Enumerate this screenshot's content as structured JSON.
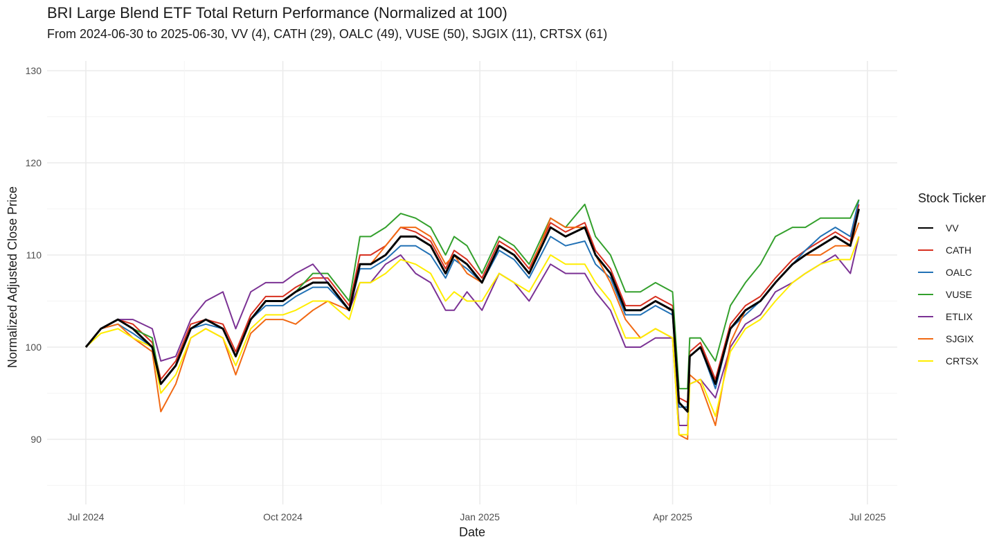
{
  "title": "BRI Large Blend ETF Total Return Performance (Normalized at 100)",
  "subtitle": "From 2024-06-30 to 2025-06-30, VV (4), CATH (29), OALC (49), VUSE (50), SJGIX (11), CRTSX (61)",
  "chart_data": {
    "type": "line",
    "title": "BRI Large Blend ETF Total Return Performance (Normalized at 100)",
    "subtitle": "From 2024-06-30 to 2025-06-30, VV (4), CATH (29), OALC (49), VUSE (50), SJGIX (11), CRTSX (61)",
    "xlabel": "Date",
    "ylabel": "Normalized Adjusted Close Price",
    "xlim": [
      "2024-07-01",
      "2025-07-01"
    ],
    "ylim": [
      85,
      130
    ],
    "x_ticks": [
      {
        "date": "2024-07-01",
        "label": "Jul 2024"
      },
      {
        "date": "2024-10-01",
        "label": "Oct 2024"
      },
      {
        "date": "2025-01-01",
        "label": "Jan 2025"
      },
      {
        "date": "2025-04-01",
        "label": "Apr 2025"
      },
      {
        "date": "2025-07-01",
        "label": "Jul 2025"
      }
    ],
    "y_ticks": [
      90,
      100,
      110,
      120,
      130
    ],
    "grid": true,
    "legend_title": "Stock Ticker",
    "legend_position": "right",
    "x": [
      "2024-07-01",
      "2024-07-08",
      "2024-07-16",
      "2024-07-23",
      "2024-08-01",
      "2024-08-05",
      "2024-08-12",
      "2024-08-19",
      "2024-08-26",
      "2024-09-03",
      "2024-09-09",
      "2024-09-16",
      "2024-09-23",
      "2024-10-01",
      "2024-10-07",
      "2024-10-15",
      "2024-10-22",
      "2024-11-01",
      "2024-11-06",
      "2024-11-11",
      "2024-11-18",
      "2024-11-25",
      "2024-12-02",
      "2024-12-09",
      "2024-12-16",
      "2024-12-20",
      "2024-12-26",
      "2025-01-02",
      "2025-01-10",
      "2025-01-17",
      "2025-01-24",
      "2025-02-03",
      "2025-02-10",
      "2025-02-19",
      "2025-02-24",
      "2025-03-03",
      "2025-03-10",
      "2025-03-17",
      "2025-03-24",
      "2025-04-01",
      "2025-04-04",
      "2025-04-08",
      "2025-04-09",
      "2025-04-14",
      "2025-04-21",
      "2025-04-28",
      "2025-05-05",
      "2025-05-12",
      "2025-05-19",
      "2025-05-27",
      "2025-06-02",
      "2025-06-09",
      "2025-06-16",
      "2025-06-23",
      "2025-06-27"
    ],
    "series": [
      {
        "name": "VV",
        "color": "#000000",
        "width": 3,
        "values": [
          100,
          102,
          103,
          102,
          100,
          96,
          98,
          102,
          103,
          102,
          99,
          103,
          105,
          105,
          106,
          107,
          107,
          104,
          109,
          109,
          110,
          112,
          112,
          111,
          108,
          110,
          109,
          107,
          111,
          110,
          108,
          113,
          112,
          113,
          110,
          108,
          104,
          104,
          105,
          104,
          94,
          93,
          99,
          100,
          96,
          102,
          104,
          105,
          107,
          109,
          110,
          111,
          112,
          111,
          115
        ]
      },
      {
        "name": "CATH",
        "color": "#d7301f",
        "width": 2,
        "values": [
          100,
          102,
          103,
          102.5,
          100.5,
          96.5,
          98.5,
          102.5,
          103,
          102.5,
          99.5,
          103.5,
          105.5,
          105.5,
          106.5,
          107.5,
          107.5,
          104.5,
          110,
          110,
          111,
          113,
          112.5,
          111.5,
          108.5,
          110.5,
          109.5,
          107.5,
          111.5,
          110.5,
          108.5,
          113.5,
          112.5,
          113.5,
          110.5,
          108.5,
          104.5,
          104.5,
          105.5,
          104.5,
          94.5,
          94,
          99.5,
          100.5,
          96.5,
          102.5,
          104.5,
          105.5,
          107.5,
          109.5,
          110.5,
          111.5,
          112.5,
          111.5,
          115.5
        ]
      },
      {
        "name": "OALC",
        "color": "#2171b5",
        "width": 2,
        "values": [
          100,
          102,
          102.5,
          101.5,
          100,
          96,
          98,
          102,
          102.5,
          102,
          99,
          103,
          104.5,
          104.5,
          105.5,
          106.5,
          106.5,
          104,
          108.5,
          108.5,
          109.5,
          111,
          111,
          110,
          107.5,
          109.5,
          108.5,
          107,
          110.5,
          109.5,
          107.5,
          112,
          111,
          111.5,
          109,
          107.5,
          103.5,
          103.5,
          104.5,
          103.5,
          93.5,
          93.5,
          99,
          100,
          95.5,
          102,
          103.5,
          105,
          107,
          109,
          110.5,
          112,
          113,
          112,
          116
        ]
      },
      {
        "name": "VUSE",
        "color": "#33a02c",
        "width": 2,
        "values": [
          100,
          102,
          103,
          102,
          101,
          96,
          98,
          102,
          103,
          102,
          99,
          103,
          105,
          105,
          106,
          108,
          108,
          105,
          112,
          112,
          113,
          114.5,
          114,
          113,
          110,
          112,
          111,
          108,
          112,
          111,
          109,
          114,
          113,
          115.5,
          112,
          110,
          106,
          106,
          107,
          106,
          95.5,
          95.5,
          101,
          101,
          98.5,
          104.5,
          107,
          109,
          112,
          113,
          113,
          114,
          114,
          114,
          116
        ]
      },
      {
        "name": "ETLIX",
        "color": "#7b3294",
        "width": 2,
        "values": [
          100,
          102,
          103,
          103,
          102,
          98.5,
          99,
          103,
          105,
          106,
          102,
          106,
          107,
          107,
          108,
          109,
          107,
          104,
          107,
          107,
          109,
          110,
          108,
          107,
          104,
          104,
          106,
          104,
          108,
          107,
          105,
          109,
          108,
          108,
          106,
          104,
          100,
          100,
          101,
          101,
          91.5,
          91.5,
          96,
          96.5,
          94.5,
          100,
          102.5,
          103.5,
          106,
          107,
          108,
          109,
          110,
          108,
          112
        ]
      },
      {
        "name": "SJGIX",
        "color": "#f16913",
        "width": 2,
        "values": [
          100,
          102,
          102.5,
          101,
          99.5,
          93,
          96,
          101,
          102,
          101,
          97,
          101.5,
          103,
          103,
          102.5,
          104,
          105,
          104,
          109,
          109,
          111,
          113,
          113,
          112,
          109,
          110,
          108,
          107,
          111,
          110,
          108,
          114,
          113,
          113,
          110,
          107,
          103,
          101,
          102,
          101,
          90.5,
          90,
          97,
          96,
          91.5,
          100.5,
          104,
          105,
          107,
          109,
          110,
          110,
          111,
          111,
          113.5
        ]
      },
      {
        "name": "CRTSX",
        "color": "#ffed00",
        "width": 2,
        "values": [
          100,
          101.5,
          102,
          101,
          100,
          95,
          97,
          101,
          102,
          101,
          98,
          102,
          103.5,
          103.5,
          104,
          105,
          105,
          103,
          107,
          107,
          108,
          109.5,
          109,
          108,
          105,
          106,
          105,
          105,
          108,
          107,
          106,
          110,
          109,
          109,
          107,
          105,
          101,
          101,
          102,
          101,
          90.5,
          90.5,
          96,
          96.5,
          92.5,
          99.5,
          102,
          103,
          105,
          107,
          108,
          109,
          109.5,
          109.5,
          112
        ]
      }
    ]
  }
}
